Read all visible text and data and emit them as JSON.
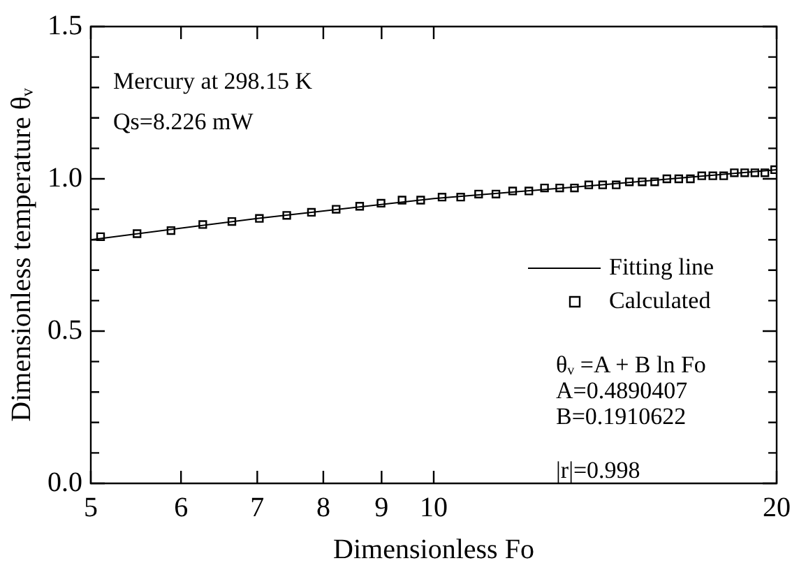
{
  "chart_data": {
    "type": "scatter",
    "xlabel": "Dimensionless Fo",
    "ylabel": "Dimensionless temperature θᵥ",
    "log": "x",
    "xlim": [
      5,
      20
    ],
    "xticks": [
      5,
      6,
      7,
      8,
      9,
      10,
      20
    ],
    "ylim": [
      0,
      1.5
    ],
    "yticks": [
      {
        "value": 0,
        "label": "0.0"
      },
      {
        "value": 0.1,
        "label": null
      },
      {
        "value": 0.2,
        "label": null
      },
      {
        "value": 0.3,
        "label": null
      },
      {
        "value": 0.4,
        "label": null
      },
      {
        "value": 0.5,
        "label": "0.5"
      },
      {
        "value": 0.6,
        "label": null
      },
      {
        "value": 0.7,
        "label": null
      },
      {
        "value": 0.8,
        "label": null
      },
      {
        "value": 0.9,
        "label": null
      },
      {
        "value": 1,
        "label": "1.0"
      },
      {
        "value": 1.1,
        "label": null
      },
      {
        "value": 1.2,
        "label": null
      },
      {
        "value": 1.3,
        "label": null
      },
      {
        "value": 1.4,
        "label": null
      },
      {
        "value": 1.5,
        "label": "1.5"
      }
    ],
    "grid": false,
    "legend": "right",
    "marker": "square",
    "series": [
      {
        "name": "Fitting line",
        "type": "line",
        "color": "#000000",
        "marker": "none",
        "line_style": "solid",
        "x": [
          5,
          7,
          10,
          14,
          20
        ],
        "values": [
          0.8,
          0.87,
          0.935,
          0.98,
          1.03
        ]
      },
      {
        "name": "Calculated",
        "color": "#000000",
        "x": [
          5.1,
          5.49,
          5.88,
          6.27,
          6.65,
          7.03,
          7.43,
          7.81,
          8.21,
          8.61,
          8.99,
          9.38,
          9.74,
          10.17,
          10.56,
          10.95,
          11.34,
          11.73,
          12.12,
          12.51,
          12.9,
          13.29,
          13.68,
          14.07,
          14.46,
          14.85,
          15.24,
          15.63,
          16.02,
          16.41,
          16.8,
          17.19,
          17.58,
          17.97,
          18.36,
          18.75,
          19.14,
          19.53,
          19.92
        ],
        "values": [
          0.81,
          0.82,
          0.83,
          0.85,
          0.86,
          0.87,
          0.88,
          0.89,
          0.9,
          0.91,
          0.92,
          0.93,
          0.93,
          0.94,
          0.94,
          0.95,
          0.95,
          0.96,
          0.96,
          0.97,
          0.97,
          0.97,
          0.98,
          0.98,
          0.98,
          0.99,
          0.99,
          0.99,
          1.0,
          1.0,
          1.0,
          1.01,
          1.01,
          1.01,
          1.02,
          1.02,
          1.02,
          1.02,
          1.03
        ]
      }
    ],
    "annotations": [
      "Mercury at 298.15 K",
      "Qs=8.226 mW",
      "θᵥ =A + B ln Fo",
      "A=0.4890407",
      "B=0.1910622",
      "|r|=0.998"
    ]
  }
}
